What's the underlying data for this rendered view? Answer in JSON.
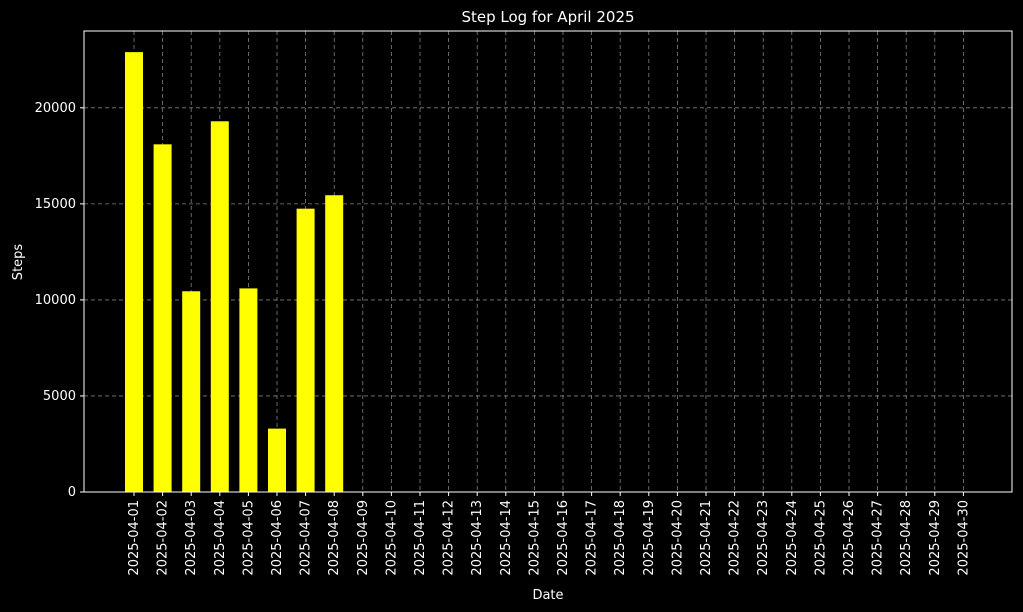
{
  "chart_data": {
    "type": "bar",
    "title": "Step Log for April 2025",
    "xlabel": "Date",
    "ylabel": "Steps",
    "categories": [
      "2025-04-01",
      "2025-04-02",
      "2025-04-03",
      "2025-04-04",
      "2025-04-05",
      "2025-04-06",
      "2025-04-07",
      "2025-04-08",
      "2025-04-09",
      "2025-04-10",
      "2025-04-11",
      "2025-04-12",
      "2025-04-13",
      "2025-04-14",
      "2025-04-15",
      "2025-04-16",
      "2025-04-17",
      "2025-04-18",
      "2025-04-19",
      "2025-04-20",
      "2025-04-21",
      "2025-04-22",
      "2025-04-23",
      "2025-04-24",
      "2025-04-25",
      "2025-04-26",
      "2025-04-27",
      "2025-04-28",
      "2025-04-29",
      "2025-04-30"
    ],
    "values": [
      22900,
      18100,
      10450,
      19300,
      10600,
      3300,
      14750,
      15450,
      null,
      null,
      null,
      null,
      null,
      null,
      null,
      null,
      null,
      null,
      null,
      null,
      null,
      null,
      null,
      null,
      null,
      null,
      null,
      null,
      null,
      null
    ],
    "ylim": [
      0,
      24000
    ],
    "yticks": [
      0,
      5000,
      10000,
      15000,
      20000
    ],
    "grid": true,
    "bar_color": "#ffff00",
    "background_color": "#000000",
    "text_color": "#ffffff",
    "grid_color": "#808080"
  }
}
